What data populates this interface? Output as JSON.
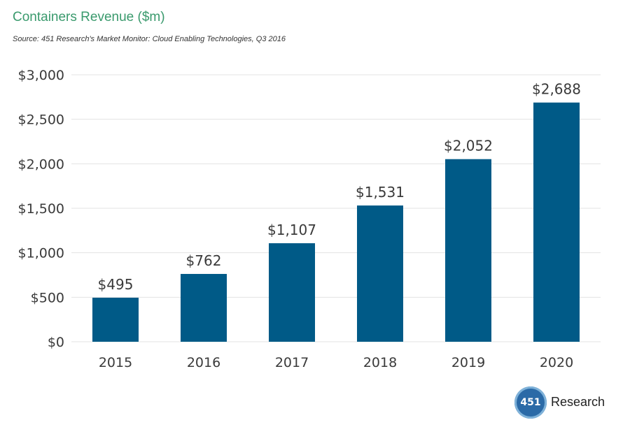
{
  "chart_data": {
    "type": "bar",
    "title": "Containers Revenue ($m)",
    "subtitle": "Source: 451 Research's Market Monitor: Cloud Enabling Technologies, Q3 2016",
    "categories": [
      "2015",
      "2016",
      "2017",
      "2018",
      "2019",
      "2020"
    ],
    "values": [
      495,
      762,
      1107,
      1531,
      2052,
      2688
    ],
    "data_labels": [
      "$495",
      "$762",
      "$1,107",
      "$1,531",
      "$2,052",
      "$2,688"
    ],
    "ylim": [
      0,
      3000
    ],
    "yticks": [
      0,
      500,
      1000,
      1500,
      2000,
      2500,
      3000
    ],
    "ytick_labels": [
      "$0",
      "$500",
      "$1,000",
      "$1,500",
      "$2,000",
      "$2,500",
      "$3,000"
    ],
    "xlabel": "",
    "ylabel": "",
    "grid": true,
    "bar_color": "#005a87",
    "grid_color": "#e3e3e3"
  },
  "logo": {
    "mark": "451",
    "text": "Research"
  }
}
